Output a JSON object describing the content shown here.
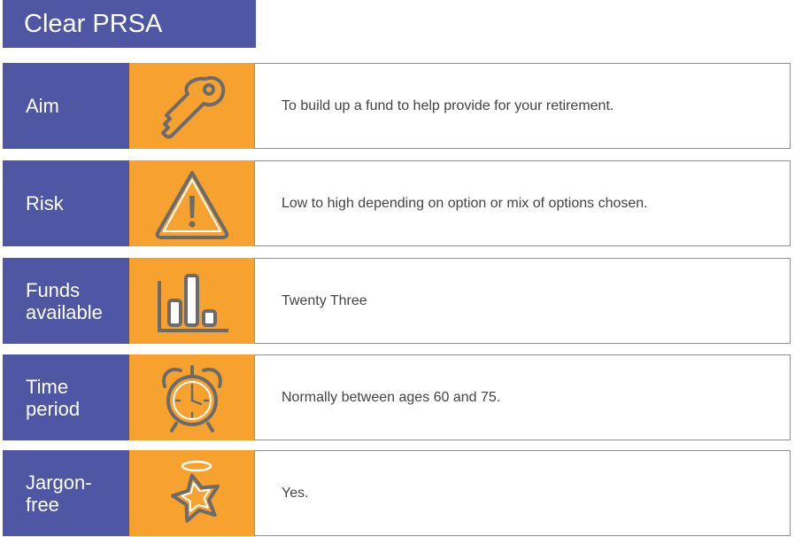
{
  "title": "Clear PRSA",
  "colors": {
    "primary": "#4f56a3",
    "accent": "#f7a12f",
    "icon": "#6b6b6b"
  },
  "rows": [
    {
      "label": "Aim",
      "icon": "key-icon",
      "text": "To build up a fund to help provide for your retirement."
    },
    {
      "label": "Risk",
      "icon": "warning-icon",
      "text": "Low to high depending on option or mix of options chosen."
    },
    {
      "label": "Funds\navailable",
      "icon": "bar-chart-icon",
      "text": "Twenty Three"
    },
    {
      "label": "Time\nperiod",
      "icon": "alarm-clock-icon",
      "text": "Normally between ages 60 and 75."
    },
    {
      "label": "Jargon-\nfree",
      "icon": "star-halo-icon",
      "text": "Yes."
    }
  ]
}
